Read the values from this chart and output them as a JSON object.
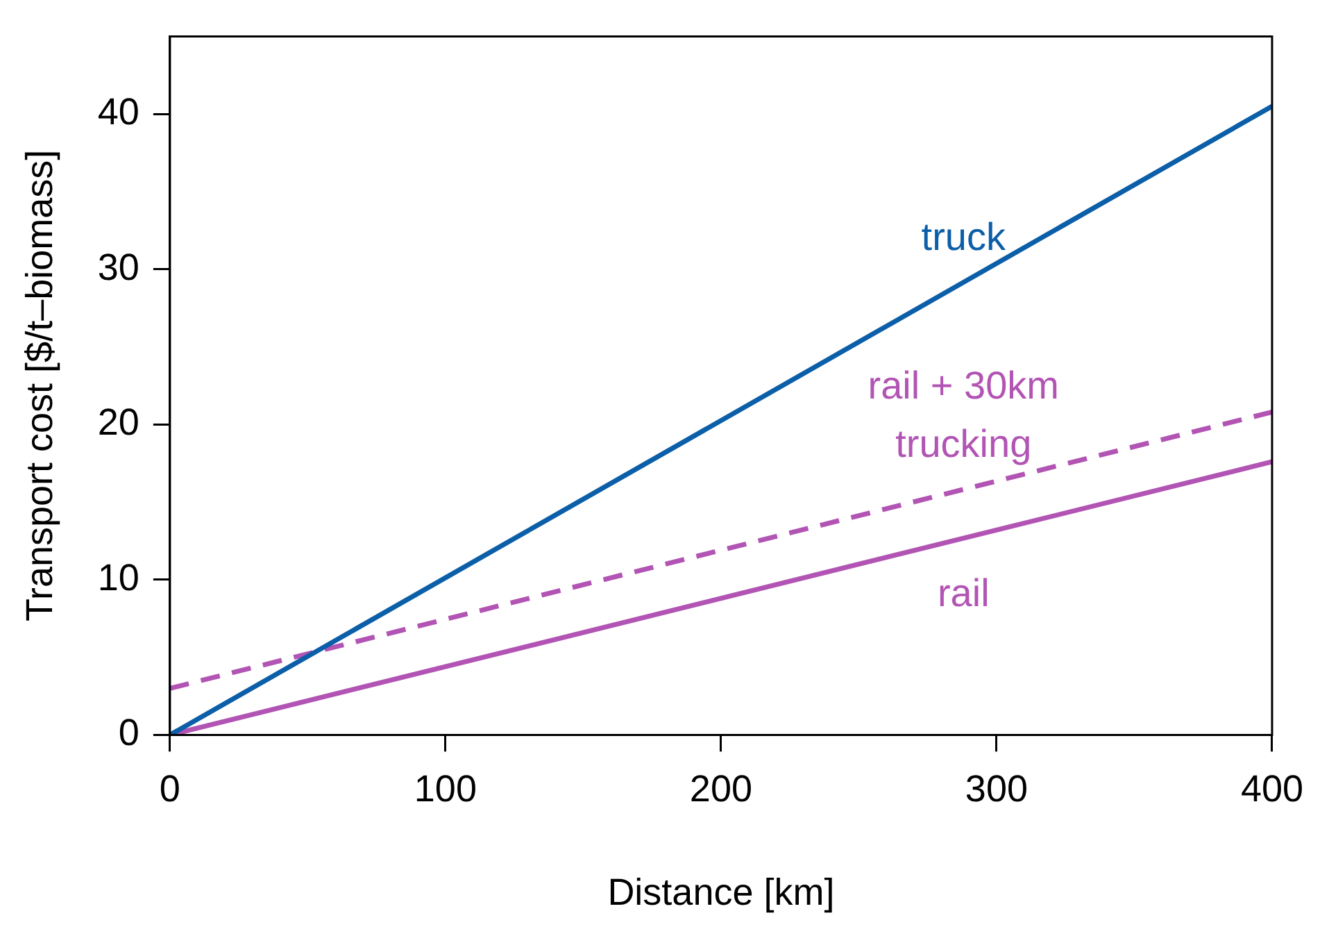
{
  "chart_data": {
    "type": "line",
    "xlabel": "Distance [km]",
    "ylabel": "Transport cost [$/t–biomass]",
    "x": [
      0,
      400
    ],
    "series": [
      {
        "name": "truck",
        "color": "#0b5ea8",
        "values": [
          0,
          40.5
        ],
        "line_style": "solid"
      },
      {
        "name": "rail + 30km trucking",
        "color": "#b254b4",
        "values": [
          3,
          20.8
        ],
        "line_style": "dashed"
      },
      {
        "name": "rail",
        "color": "#b254b4",
        "values": [
          0,
          17.6
        ],
        "line_style": "solid"
      }
    ],
    "xlim": [
      0,
      400
    ],
    "xticks": [
      0,
      100,
      200,
      300,
      400
    ],
    "ylim": [
      0,
      45
    ],
    "yticks": [
      0,
      10,
      20,
      30,
      40
    ],
    "grid": false,
    "legend": false,
    "marker": "none"
  }
}
